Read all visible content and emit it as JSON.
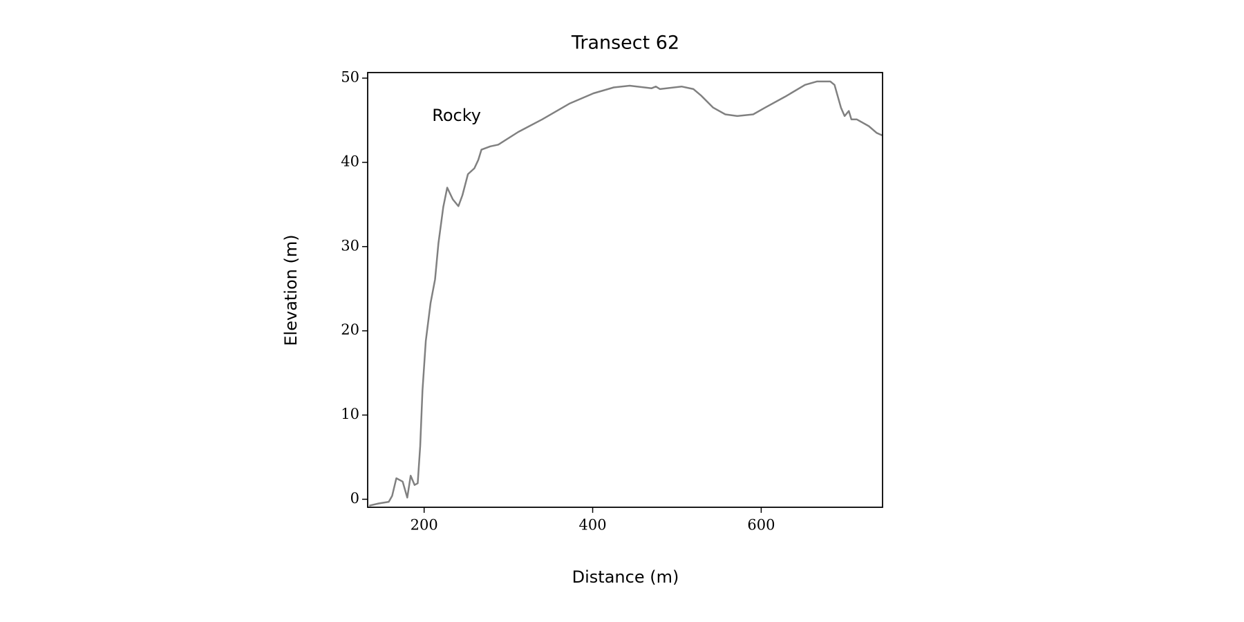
{
  "chart_data": {
    "type": "line",
    "title": "Transect 62",
    "xlabel": "Distance (m)",
    "ylabel": "Elevation (m)",
    "annotation": {
      "text": "Rocky",
      "x": 209.5,
      "y": 45.5
    },
    "x": [
      134.8,
      146,
      158,
      162,
      167,
      174.5,
      180,
      184,
      188.7,
      192.4,
      195.3,
      198,
      202,
      207.6,
      213,
      217,
      222.7,
      227.4,
      234,
      240.7,
      245.4,
      252,
      259.6,
      264.3,
      268,
      278.5,
      288,
      311.6,
      340,
      373,
      401,
      425,
      444,
      470,
      475,
      479.9,
      505.5,
      519.6,
      529,
      543,
      557.4,
      571.6,
      590.5,
      604.7,
      628.4,
      652,
      666,
      682,
      687,
      694.6,
      699,
      704,
      707,
      713.5,
      727.7,
      737,
      743.7
    ],
    "series": [
      {
        "color": "#808080",
        "values": [
          -0.76,
          -0.5,
          -0.3,
          0.4,
          2.5,
          2.1,
          0.2,
          2.8,
          1.7,
          1.9,
          6.3,
          12.9,
          18.8,
          23.3,
          26.1,
          30.4,
          34.7,
          37.0,
          35.6,
          34.8,
          36.1,
          38.6,
          39.3,
          40.3,
          41.5,
          41.9,
          42.1,
          43.6,
          45.1,
          47.0,
          48.2,
          48.9,
          49.1,
          48.8,
          49.0,
          48.7,
          49.0,
          48.7,
          47.9,
          46.5,
          45.7,
          45.5,
          45.7,
          46.5,
          47.8,
          49.2,
          49.6,
          49.6,
          49.2,
          46.5,
          45.5,
          46.1,
          45.1,
          45.1,
          44.3,
          43.5,
          43.2
        ]
      }
    ],
    "xlim": [
      133,
      744
    ],
    "ylim": [
      -0.95,
      50.66
    ],
    "xticks": [
      200,
      400,
      600
    ],
    "yticks": [
      0,
      10,
      20,
      30,
      40,
      50
    ]
  }
}
